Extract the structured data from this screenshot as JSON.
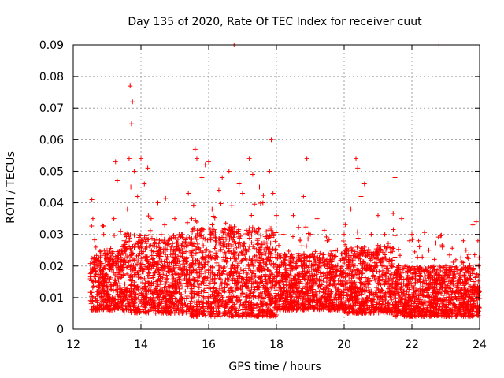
{
  "chart_data": {
    "type": "scatter",
    "title": "Day 135 of 2020, Rate Of TEC Index for receiver cuut",
    "xlabel": "GPS time / hours",
    "ylabel": "ROTI / TECUs",
    "xlim": [
      12,
      24
    ],
    "ylim": [
      0,
      0.09
    ],
    "xticks": [
      12,
      14,
      16,
      18,
      20,
      22,
      24
    ],
    "xtick_labels": [
      "12",
      "14",
      "16",
      "18",
      "20",
      "22",
      "24"
    ],
    "yticks": [
      0,
      0.01,
      0.02,
      0.03,
      0.04,
      0.05,
      0.06,
      0.07,
      0.08,
      0.09
    ],
    "ytick_labels": [
      "0",
      "0.01",
      "0.02",
      "0.03",
      "0.04",
      "0.05",
      "0.06",
      "0.07",
      "0.08",
      "0.09"
    ],
    "grid": true,
    "marker": "+",
    "color": "#ff0000",
    "x_range_of_data": [
      12.5,
      24.0
    ],
    "series": [
      {
        "name": "ROTI",
        "points": [
          [
            12.55,
            0.041
          ],
          [
            12.58,
            0.035
          ],
          [
            12.6,
            0.021
          ],
          [
            12.65,
            0.015
          ],
          [
            12.7,
            0.012
          ],
          [
            12.8,
            0.018
          ],
          [
            12.9,
            0.03
          ],
          [
            13.0,
            0.025
          ],
          [
            13.1,
            0.022
          ],
          [
            13.2,
            0.035
          ],
          [
            13.25,
            0.053
          ],
          [
            13.3,
            0.047
          ],
          [
            13.4,
            0.031
          ],
          [
            13.5,
            0.028
          ],
          [
            13.6,
            0.038
          ],
          [
            13.7,
            0.045
          ],
          [
            13.65,
            0.054
          ],
          [
            13.72,
            0.065
          ],
          [
            13.75,
            0.072
          ],
          [
            13.68,
            0.077
          ],
          [
            13.8,
            0.05
          ],
          [
            13.9,
            0.042
          ],
          [
            14.0,
            0.054
          ],
          [
            14.1,
            0.046
          ],
          [
            14.2,
            0.051
          ],
          [
            14.3,
            0.035
          ],
          [
            14.5,
            0.04
          ],
          [
            14.7,
            0.033
          ],
          [
            14.9,
            0.026
          ],
          [
            15.0,
            0.035
          ],
          [
            15.2,
            0.03
          ],
          [
            15.4,
            0.043
          ],
          [
            15.5,
            0.035
          ],
          [
            15.6,
            0.057
          ],
          [
            15.65,
            0.054
          ],
          [
            15.8,
            0.048
          ],
          [
            15.9,
            0.052
          ],
          [
            16.0,
            0.053
          ],
          [
            16.1,
            0.038
          ],
          [
            16.3,
            0.044
          ],
          [
            16.4,
            0.048
          ],
          [
            16.6,
            0.05
          ],
          [
            16.75,
            0.09
          ],
          [
            16.9,
            0.046
          ],
          [
            17.0,
            0.043
          ],
          [
            17.2,
            0.054
          ],
          [
            17.3,
            0.049
          ],
          [
            17.5,
            0.045
          ],
          [
            17.6,
            0.04
          ],
          [
            17.8,
            0.05
          ],
          [
            17.85,
            0.06
          ],
          [
            17.9,
            0.043
          ],
          [
            18.0,
            0.036
          ],
          [
            18.2,
            0.03
          ],
          [
            18.5,
            0.036
          ],
          [
            18.7,
            0.028
          ],
          [
            18.8,
            0.042
          ],
          [
            18.9,
            0.054
          ],
          [
            19.0,
            0.03
          ],
          [
            19.2,
            0.035
          ],
          [
            19.5,
            0.028
          ],
          [
            19.8,
            0.025
          ],
          [
            20.0,
            0.03
          ],
          [
            20.2,
            0.038
          ],
          [
            20.35,
            0.054
          ],
          [
            20.4,
            0.051
          ],
          [
            20.5,
            0.042
          ],
          [
            20.6,
            0.046
          ],
          [
            20.8,
            0.03
          ],
          [
            21.0,
            0.036
          ],
          [
            21.2,
            0.03
          ],
          [
            21.5,
            0.048
          ],
          [
            21.7,
            0.035
          ],
          [
            22.0,
            0.03
          ],
          [
            22.2,
            0.028
          ],
          [
            22.5,
            0.025
          ],
          [
            22.8,
            0.09
          ],
          [
            22.9,
            0.026
          ],
          [
            23.0,
            0.02
          ],
          [
            23.3,
            0.022
          ],
          [
            23.6,
            0.025
          ],
          [
            23.8,
            0.033
          ],
          [
            23.9,
            0.034
          ],
          [
            23.95,
            0.028
          ]
        ],
        "dense_band": {
          "segments": [
            {
              "x": [
                12.5,
                13.5
              ],
              "y_core": [
                0.006,
                0.025
              ]
            },
            {
              "x": [
                13.5,
                15.5
              ],
              "y_core": [
                0.005,
                0.03
              ]
            },
            {
              "x": [
                15.5,
                18.0
              ],
              "y_core": [
                0.004,
                0.032
              ]
            },
            {
              "x": [
                18.0,
                20.0
              ],
              "y_core": [
                0.006,
                0.024
              ]
            },
            {
              "x": [
                20.0,
                21.5
              ],
              "y_core": [
                0.005,
                0.026
              ]
            },
            {
              "x": [
                21.5,
                24.0
              ],
              "y_core": [
                0.004,
                0.02
              ]
            }
          ]
        }
      }
    ]
  }
}
